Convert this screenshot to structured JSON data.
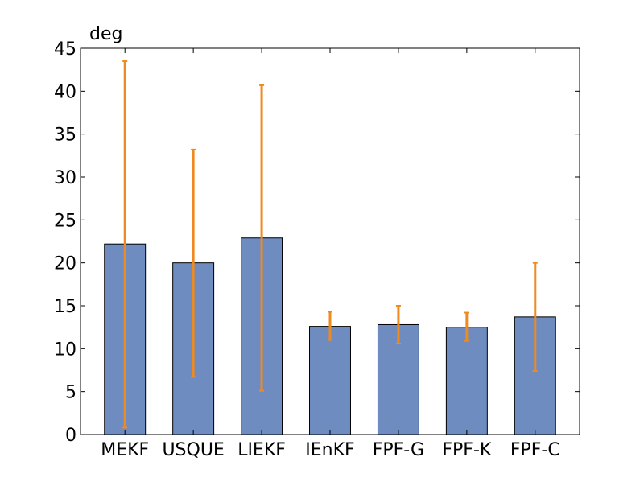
{
  "chart_data": {
    "type": "bar",
    "unit_label": "deg",
    "categories": [
      "MEKF",
      "USQUE",
      "LIEKF",
      "IEnKF",
      "FPF-G",
      "FPF-K",
      "FPF-C"
    ],
    "values": [
      22.2,
      20.0,
      22.9,
      12.6,
      12.8,
      12.5,
      13.7
    ],
    "error_low": [
      0.8,
      6.7,
      5.1,
      11.0,
      10.6,
      10.9,
      7.4
    ],
    "error_high": [
      43.5,
      33.2,
      40.7,
      14.3,
      15.0,
      14.2,
      20.0
    ],
    "ylim": [
      0,
      45
    ],
    "yticks": [
      0,
      5,
      10,
      15,
      20,
      25,
      30,
      35,
      40,
      45
    ],
    "grid": false,
    "colors": {
      "bar": "#6e8cc0",
      "bar_edge": "#000000",
      "error": "#ef8a21",
      "axis": "#000000"
    }
  }
}
